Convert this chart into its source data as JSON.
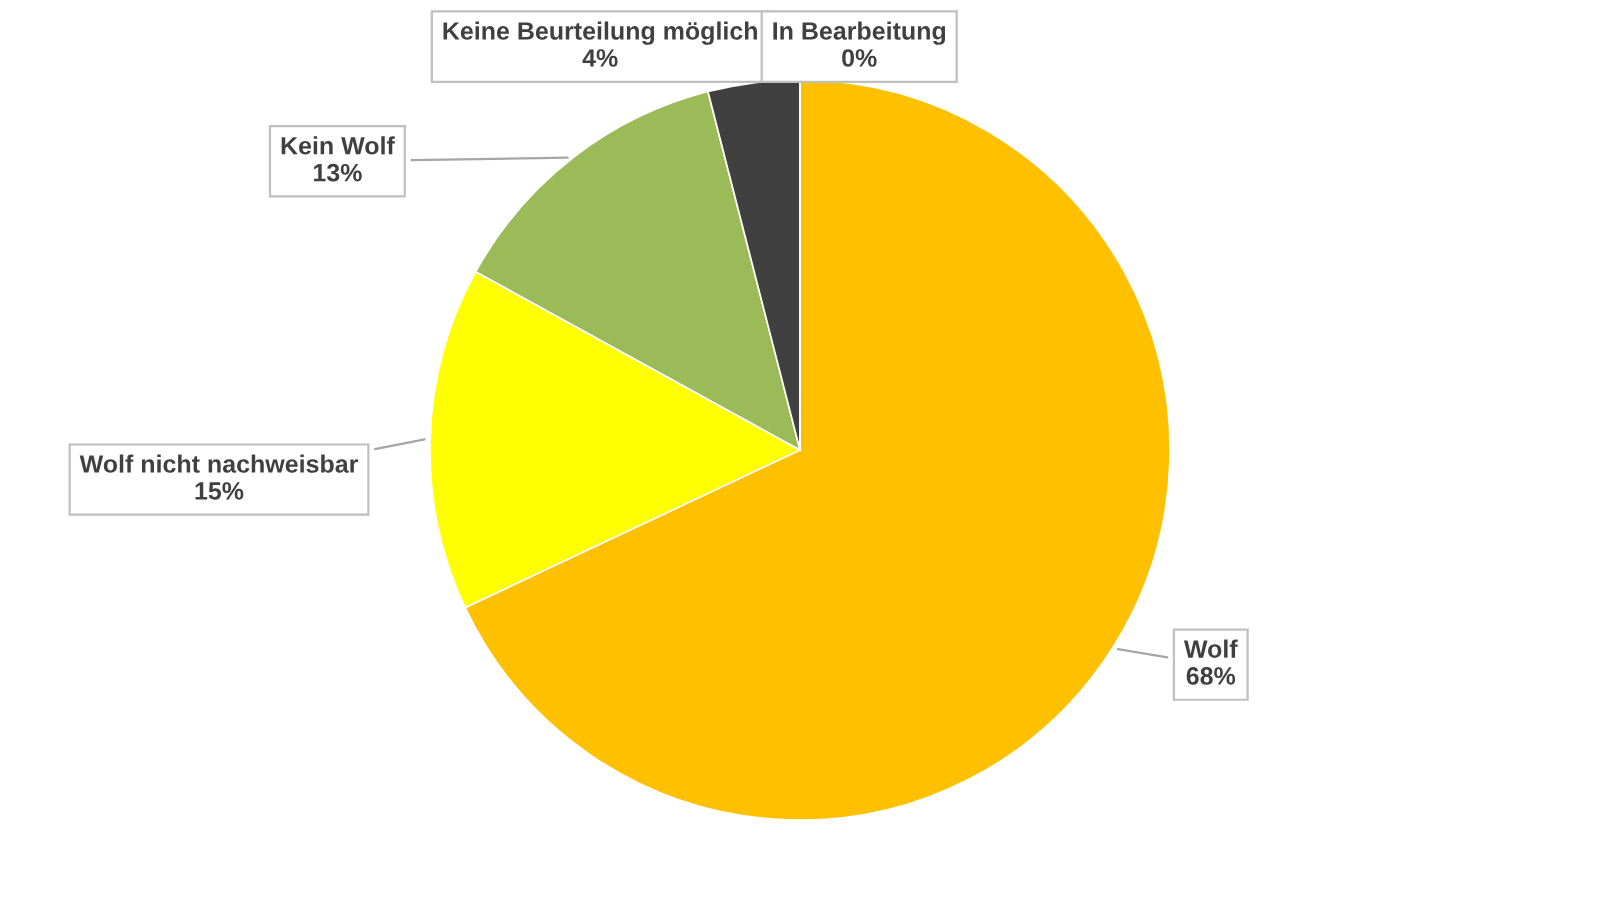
{
  "chart_data": {
    "type": "pie",
    "categories": [
      "Wolf",
      "Wolf nicht nachweisbar",
      "Kein Wolf",
      "Keine Beurteilung möglich",
      "In Bearbeitung"
    ],
    "values": [
      68,
      15,
      13,
      4,
      0
    ],
    "colors": [
      "#ffc000",
      "#ffff00",
      "#9bbb59",
      "#404040",
      "#5b9bd5"
    ],
    "value_labels": [
      "68%",
      "15%",
      "13%",
      "4%",
      "0%"
    ],
    "legend": false
  }
}
